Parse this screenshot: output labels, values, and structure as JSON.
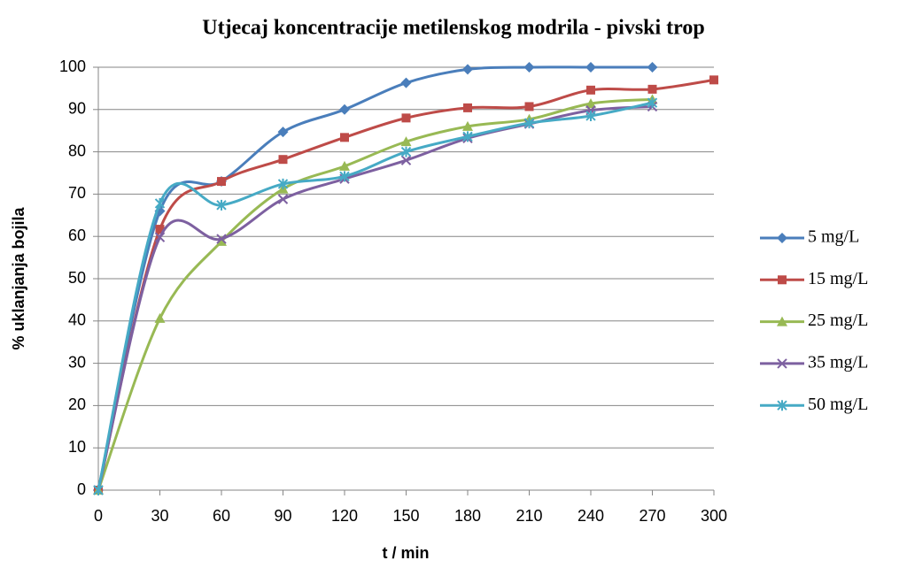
{
  "chart_data": {
    "type": "line",
    "title": "Utjecaj koncentracije metilenskog modrila - pivski trop",
    "x_label": "t / min",
    "y_label": "% uklanjanja bojila",
    "x": [
      0,
      30,
      60,
      90,
      120,
      150,
      180,
      210,
      240,
      270,
      300
    ],
    "xlim": [
      0,
      300
    ],
    "xticks": [
      0,
      30,
      60,
      90,
      120,
      150,
      180,
      210,
      240,
      270,
      300
    ],
    "ylim": [
      0,
      100
    ],
    "yticks": [
      0,
      10,
      20,
      30,
      40,
      50,
      60,
      70,
      80,
      90,
      100
    ],
    "grid": true,
    "smooth": true,
    "legend": "right",
    "series": [
      {
        "name": "5 mg/L",
        "color": "#4a7ebb",
        "marker": "diamond",
        "values": [
          0,
          66,
          73,
          84.7,
          90,
          96.3,
          99.5,
          100,
          100,
          100,
          null
        ]
      },
      {
        "name": "15 mg/L",
        "color": "#be4b48",
        "marker": "square",
        "values": [
          0,
          61.7,
          73,
          78.2,
          83.4,
          88,
          90.4,
          90.7,
          94.6,
          94.8,
          97
        ]
      },
      {
        "name": "25 mg/L",
        "color": "#98b954",
        "marker": "triangle",
        "values": [
          0,
          40.6,
          58.8,
          71.2,
          76.6,
          82.4,
          86,
          87.7,
          91.4,
          92.4,
          null
        ]
      },
      {
        "name": "35 mg/L",
        "color": "#7d60a0",
        "marker": "x",
        "values": [
          0,
          59.8,
          59.4,
          68.8,
          73.6,
          78,
          83.2,
          86.6,
          89.8,
          90.7,
          null
        ]
      },
      {
        "name": "50 mg/L",
        "color": "#46aac5",
        "marker": "star",
        "values": [
          0,
          67.8,
          67.4,
          72.4,
          74.2,
          80,
          83.6,
          86.8,
          88.5,
          91.6,
          null
        ]
      }
    ]
  }
}
